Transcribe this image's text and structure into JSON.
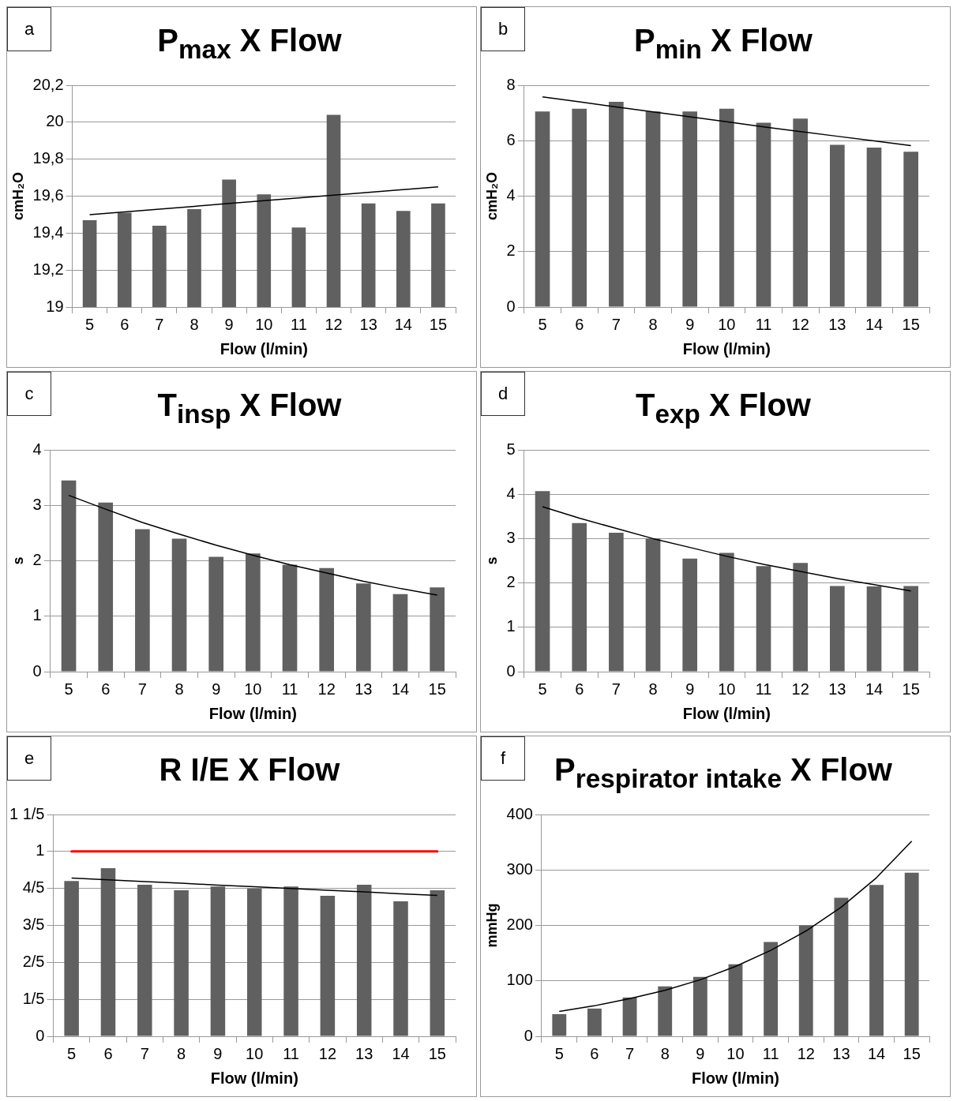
{
  "chart_data": [
    {
      "type": "bar",
      "title": "P$_{max}$ X Flow",
      "annotations": [
        "a"
      ],
      "xlabel": "Flow (l/min)",
      "ylabel": "cmH₂O",
      "categories": [
        "5",
        "6",
        "7",
        "8",
        "9",
        "10",
        "11",
        "12",
        "13",
        "14",
        "15"
      ],
      "ylim": [
        19,
        20.2
      ],
      "yticks": [
        19,
        {
          "value": 19.2,
          "label": "19,2"
        },
        {
          "value": 19.4,
          "label": "19,4"
        },
        {
          "value": 19.6,
          "label": "19,6"
        },
        {
          "value": 19.8,
          "label": "19,8"
        },
        20,
        {
          "value": 20.2,
          "label": "20,2"
        }
      ],
      "grid": "y",
      "series": [
        {
          "color": "#606060",
          "values": [
            19.47,
            19.51,
            19.44,
            19.53,
            19.69,
            19.61,
            19.43,
            20.04,
            19.56,
            19.52,
            19.56
          ]
        },
        {
          "type": "line",
          "color": "#000000",
          "values": [
            19.5,
            19.515,
            19.53,
            19.545,
            19.56,
            19.575,
            19.59,
            19.605,
            19.62,
            19.635,
            19.65
          ]
        }
      ]
    },
    {
      "type": "bar",
      "title": "P$_{min}$ X Flow",
      "annotations": [
        "b"
      ],
      "xlabel": "Flow (l/min)",
      "ylabel": "cmH₂O",
      "categories": [
        "5",
        "6",
        "7",
        "8",
        "9",
        "10",
        "11",
        "12",
        "13",
        "14",
        "15"
      ],
      "ylim": [
        0,
        8
      ],
      "yticks": [
        0,
        2,
        4,
        6,
        8
      ],
      "grid": "y",
      "series": [
        {
          "color": "#606060",
          "values": [
            7.05,
            7.15,
            7.4,
            7.05,
            7.05,
            7.15,
            6.65,
            6.8,
            5.85,
            5.75,
            5.6
          ]
        },
        {
          "type": "line",
          "color": "#000000",
          "values": [
            7.58,
            7.4,
            7.22,
            7.04,
            6.86,
            6.68,
            6.5,
            6.33,
            6.16,
            5.99,
            5.82
          ]
        }
      ]
    },
    {
      "type": "bar",
      "title": "T$_{insp}$ X Flow",
      "annotations": [
        "c"
      ],
      "xlabel": "Flow (l/min)",
      "ylabel": "s",
      "categories": [
        "5",
        "6",
        "7",
        "8",
        "9",
        "10",
        "11",
        "12",
        "13",
        "14",
        "15"
      ],
      "ylim": [
        0,
        4
      ],
      "yticks": [
        0,
        1,
        2,
        3,
        4
      ],
      "grid": "y",
      "series": [
        {
          "color": "#606060",
          "values": [
            3.45,
            3.05,
            2.57,
            2.4,
            2.07,
            2.13,
            1.93,
            1.87,
            1.59,
            1.4,
            1.52
          ]
        },
        {
          "type": "line",
          "color": "#000000",
          "values": [
            3.18,
            2.93,
            2.69,
            2.48,
            2.28,
            2.1,
            1.93,
            1.78,
            1.63,
            1.5,
            1.38
          ]
        }
      ]
    },
    {
      "type": "bar",
      "title": "T$_{exp}$ X Flow",
      "annotations": [
        "d"
      ],
      "xlabel": "Flow (l/min)",
      "ylabel": "s",
      "categories": [
        "5",
        "6",
        "7",
        "8",
        "9",
        "10",
        "11",
        "12",
        "13",
        "14",
        "15"
      ],
      "ylim": [
        0,
        5
      ],
      "yticks": [
        0,
        1,
        2,
        3,
        4,
        5
      ],
      "grid": "y",
      "series": [
        {
          "color": "#606060",
          "values": [
            4.07,
            3.35,
            3.13,
            3.0,
            2.55,
            2.68,
            2.38,
            2.45,
            1.93,
            1.92,
            1.93
          ]
        },
        {
          "type": "line",
          "color": "#000000",
          "values": [
            3.72,
            3.46,
            3.23,
            3.0,
            2.8,
            2.6,
            2.42,
            2.26,
            2.1,
            1.96,
            1.82
          ]
        }
      ]
    },
    {
      "type": "bar",
      "title": "R I/E X Flow",
      "annotations": [
        "e"
      ],
      "xlabel": "Flow (l/min)",
      "categories": [
        "5",
        "6",
        "7",
        "8",
        "9",
        "10",
        "11",
        "12",
        "13",
        "14",
        "15"
      ],
      "ylim": [
        0,
        1.2
      ],
      "yticks": [
        0,
        {
          "value": 0.2,
          "label": "1/5"
        },
        {
          "value": 0.4,
          "label": "2/5"
        },
        {
          "value": 0.6,
          "label": "3/5"
        },
        {
          "value": 0.8,
          "label": "4/5"
        },
        1,
        {
          "value": 1.2,
          "label": "1 1/5"
        }
      ],
      "grid": "y",
      "ref_lines": [
        {
          "axis": "y",
          "value": 1,
          "color": "#ff0000"
        }
      ],
      "series": [
        {
          "color": "#606060",
          "values": [
            0.84,
            0.91,
            0.82,
            0.79,
            0.81,
            0.8,
            0.81,
            0.76,
            0.82,
            0.73,
            0.79
          ]
        },
        {
          "type": "line",
          "color": "#000000",
          "values": [
            0.856,
            0.847,
            0.837,
            0.828,
            0.818,
            0.809,
            0.8,
            0.79,
            0.781,
            0.771,
            0.762
          ]
        }
      ]
    },
    {
      "type": "bar",
      "title": "P$_{respirator intake}$ X Flow",
      "annotations": [
        "f"
      ],
      "xlabel": "Flow (l/min)",
      "ylabel": "mmHg",
      "categories": [
        "5",
        "6",
        "7",
        "8",
        "9",
        "10",
        "11",
        "12",
        "13",
        "14",
        "15"
      ],
      "ylim": [
        0,
        400
      ],
      "yticks": [
        0,
        100,
        200,
        300,
        400
      ],
      "grid": "y",
      "series": [
        {
          "color": "#606060",
          "values": [
            40,
            50,
            70,
            90,
            107,
            130,
            170,
            200,
            250,
            273,
            295
          ]
        },
        {
          "type": "line",
          "color": "#000000",
          "values": [
            45,
            55,
            68,
            83,
            102,
            126,
            155,
            190,
            233,
            286,
            352
          ]
        }
      ]
    }
  ]
}
